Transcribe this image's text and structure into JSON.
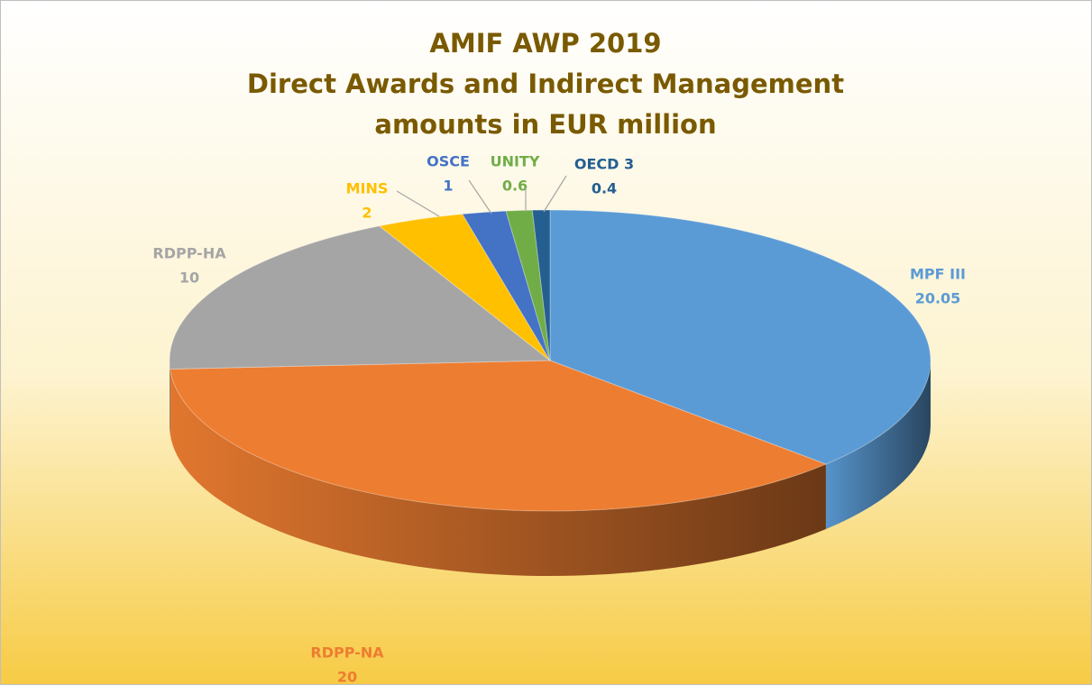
{
  "chart_data": {
    "type": "pie",
    "title": [
      "AMIF AWP 2019",
      "Direct Awards and Indirect Management",
      "amounts in EUR million"
    ],
    "categories": [
      "MPF III",
      "RDPP-NA",
      "RDPP-HA",
      "MINS",
      "OSCE",
      "UNITY",
      "OECD 3"
    ],
    "values": [
      20.05,
      20,
      10,
      2,
      1,
      0.6,
      0.4
    ],
    "colors": [
      "#5b9bd5",
      "#ed7d31",
      "#a5a5a5",
      "#ffc000",
      "#4472c4",
      "#70ad47",
      "#255e91"
    ]
  }
}
